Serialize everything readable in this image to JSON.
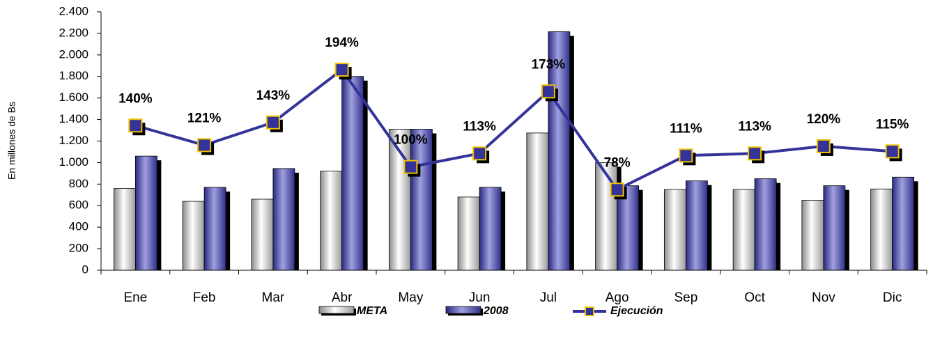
{
  "chart_data": {
    "type": "bar-line",
    "y_label": "En millones de Bs",
    "categories": [
      "Ene",
      "Feb",
      "Mar",
      "Abr",
      "May",
      "Jun",
      "Jul",
      "Ago",
      "Sep",
      "Oct",
      "Nov",
      "Dic"
    ],
    "series": [
      {
        "name": "META",
        "type": "bar",
        "color": "#d0d0d0",
        "values": [
          760,
          640,
          660,
          920,
          1310,
          680,
          1275,
          1000,
          750,
          750,
          650,
          755
        ]
      },
      {
        "name": "2008",
        "type": "bar",
        "color": "#6c6cc0",
        "values": [
          1060,
          770,
          945,
          1800,
          1310,
          770,
          2215,
          785,
          830,
          850,
          785,
          865
        ]
      },
      {
        "name": "Ejecución",
        "type": "line",
        "axis": "y2",
        "color": "#333399",
        "marker_color": "#f0c000",
        "values": [
          140,
          121,
          143,
          194,
          100,
          113,
          173,
          78,
          111,
          113,
          120,
          115
        ],
        "value_labels": [
          "140%",
          "121%",
          "143%",
          "194%",
          "100%",
          "113%",
          "173%",
          "78%",
          "111%",
          "113%",
          "120%",
          "115%"
        ]
      }
    ],
    "ylim": [
      0,
      2400
    ],
    "yticks": [
      0,
      200,
      400,
      600,
      800,
      {
        "value": 1000,
        "label": "1.000"
      },
      {
        "value": 1200,
        "label": "1.200"
      },
      {
        "value": 1400,
        "label": "1.400"
      },
      {
        "value": 1600,
        "label": "1.600"
      },
      {
        "value": 1800,
        "label": "1.800"
      },
      {
        "value": 2000,
        "label": "2.000"
      },
      {
        "value": 2200,
        "label": "2.200"
      },
      {
        "value": 2400,
        "label": "2.400"
      }
    ],
    "y2lim": [
      0,
      250
    ],
    "grid": false
  }
}
